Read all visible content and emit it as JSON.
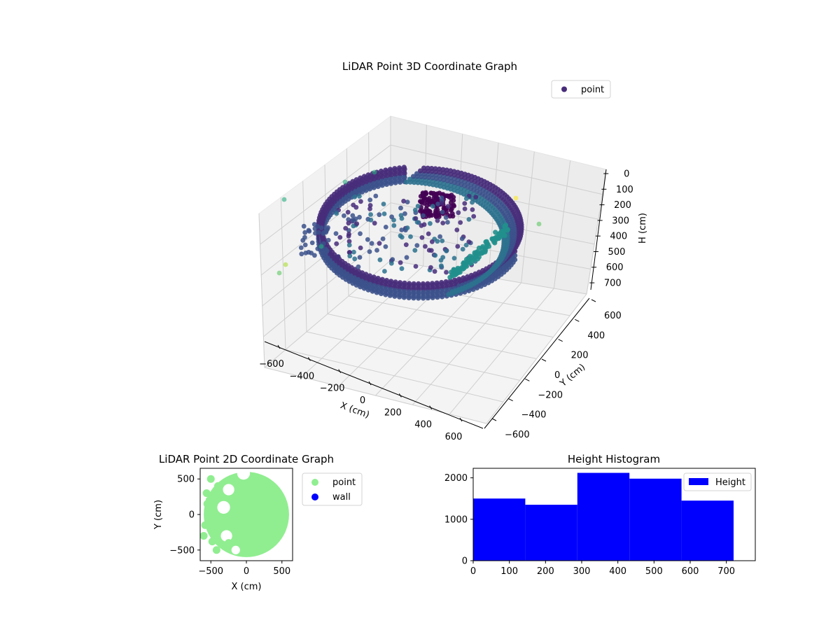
{
  "chart_data": [
    {
      "id": "lidar3d",
      "type": "scatter",
      "title": "LiDAR Point 3D Coordinate Graph",
      "xlabel": "X (cm)",
      "ylabel": "Y (cm)",
      "zlabel": "H (cm)",
      "x_ticks": [
        "−600",
        "−400",
        "−200",
        "0",
        "200",
        "400",
        "600"
      ],
      "y_ticks": [
        "−600",
        "−400",
        "−200",
        "0",
        "200",
        "400",
        "600"
      ],
      "z_ticks": [
        "0",
        "100",
        "200",
        "300",
        "400",
        "500",
        "600",
        "700"
      ],
      "xlim": [
        -600,
        600
      ],
      "ylim": [
        -600,
        600
      ],
      "zlim": [
        0,
        750
      ],
      "z_inverted": true,
      "colormap": "viridis",
      "grid": true,
      "legend": {
        "position": "top-right",
        "entries": [
          {
            "label": "point",
            "color": "#472c7a"
          }
        ]
      }
    },
    {
      "id": "lidar2d",
      "type": "scatter",
      "title": "LiDAR Point 2D Coordinate Graph",
      "xlabel": "X (cm)",
      "ylabel": "Y (cm)",
      "x_ticks": [
        "−500",
        "0",
        "500"
      ],
      "y_ticks": [
        "−500",
        "0",
        "500"
      ],
      "xlim": [
        -650,
        650
      ],
      "ylim": [
        -650,
        650
      ],
      "legend": {
        "position": "outside-right",
        "entries": [
          {
            "label": "point",
            "color": "#90ee90"
          },
          {
            "label": "wall",
            "color": "#0000ff"
          }
        ]
      }
    },
    {
      "id": "height_hist",
      "type": "bar",
      "title": "Height Histogram",
      "bin_edges": [
        0,
        144,
        288,
        432,
        576,
        720
      ],
      "values": [
        1500,
        1350,
        2120,
        1980,
        1450
      ],
      "xlim": [
        0,
        780
      ],
      "ylim": [
        0,
        2230
      ],
      "x_ticks": [
        "0",
        "100",
        "200",
        "300",
        "400",
        "500",
        "600",
        "700"
      ],
      "y_ticks": [
        "0",
        "1000",
        "2000"
      ],
      "legend": {
        "position": "top-right",
        "entries": [
          {
            "label": "Height",
            "color": "#0000ff"
          }
        ]
      }
    }
  ]
}
